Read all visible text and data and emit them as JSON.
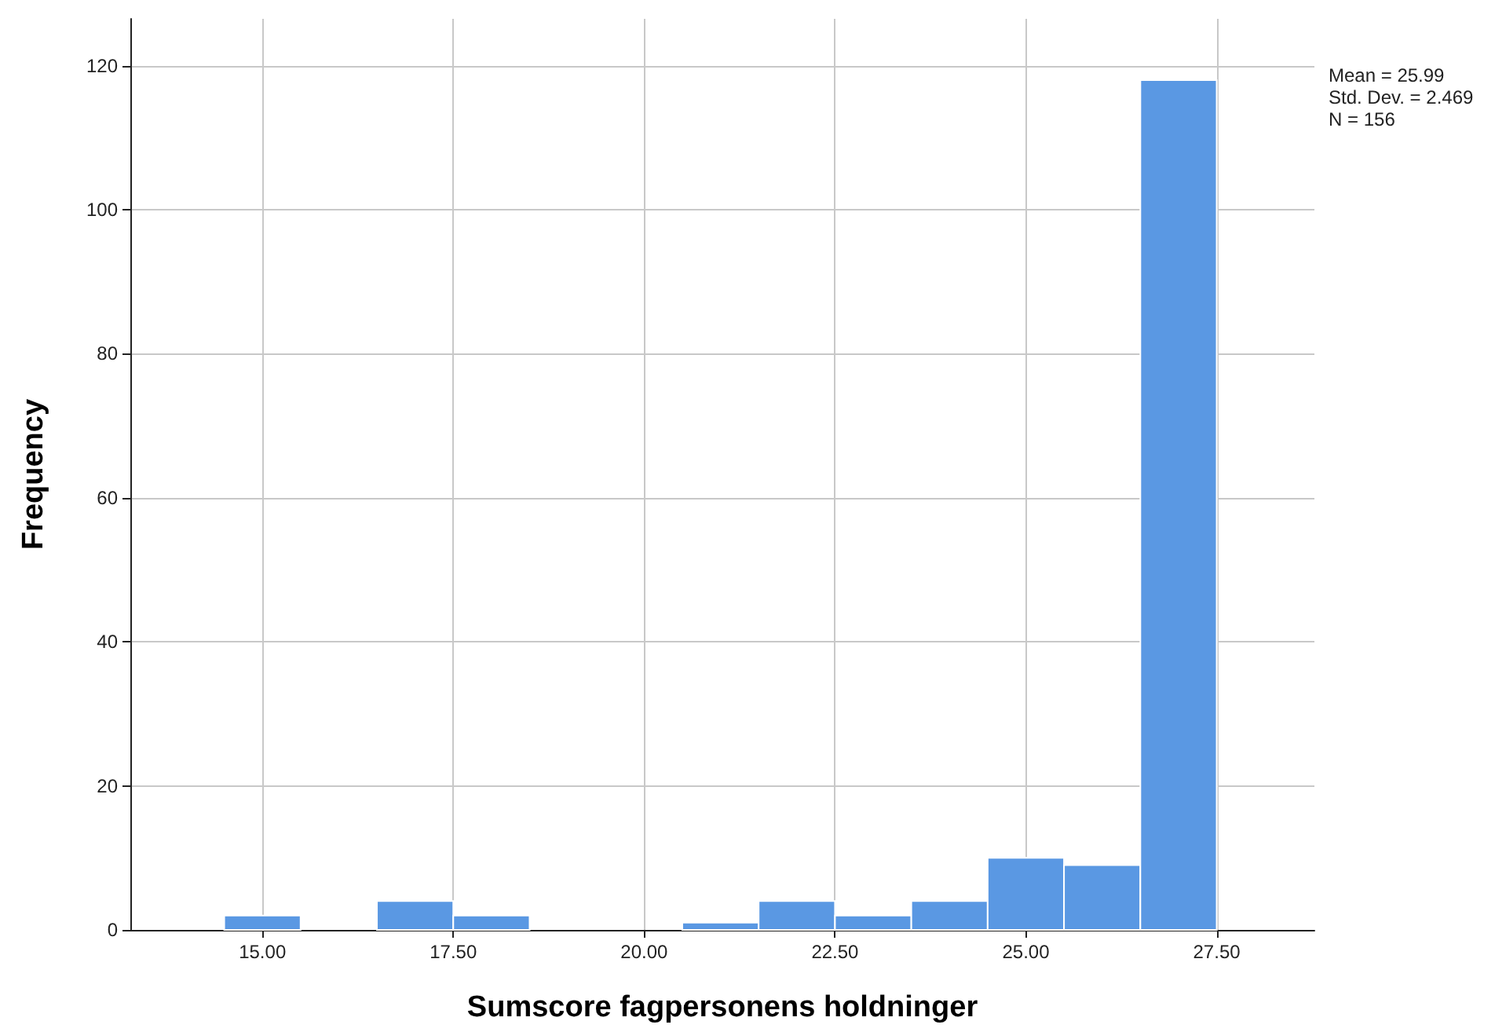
{
  "chart_data": {
    "type": "histogram",
    "xlabel": "Sumscore fagpersonens holdninger",
    "ylabel": "Frequency",
    "bins": [
      14.5,
      15.5,
      16.5,
      17.5,
      18.5,
      19.5,
      20.5,
      21.5,
      22.5,
      23.5,
      24.5,
      25.5,
      26.5,
      27.5
    ],
    "values": [
      2,
      0,
      4,
      2,
      0,
      0,
      1,
      4,
      2,
      4,
      10,
      9,
      118
    ],
    "color": "#5a98e3",
    "xlim": [
      13.27,
      28.78
    ],
    "ylim": [
      0,
      126.5
    ],
    "xticks": [
      {
        "value": 15,
        "label": "15.00"
      },
      {
        "value": 17.5,
        "label": "17.50"
      },
      {
        "value": 20,
        "label": "20.00"
      },
      {
        "value": 22.5,
        "label": "22.50"
      },
      {
        "value": 25,
        "label": "25.00"
      },
      {
        "value": 27.5,
        "label": "27.50"
      }
    ],
    "yticks": [
      0,
      20,
      40,
      60,
      80,
      100,
      120
    ],
    "grid": true,
    "annotations": [
      "Mean = 25.99",
      "Std. Dev. = 2.469",
      "N = 156"
    ]
  }
}
